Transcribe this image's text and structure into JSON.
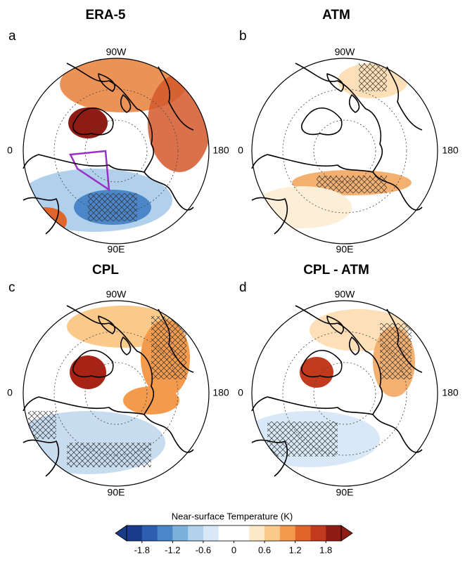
{
  "panels": [
    {
      "letter": "a",
      "title": "ERA-5",
      "labels": {
        "top": "90W",
        "left": "0",
        "right": "180",
        "bottom": "90E"
      }
    },
    {
      "letter": "b",
      "title": "ATM",
      "labels": {
        "top": "90W",
        "left": "0",
        "right": "180",
        "bottom": "90E"
      }
    },
    {
      "letter": "c",
      "title": "CPL",
      "labels": {
        "top": "90W",
        "left": "0",
        "right": "180",
        "bottom": "90E"
      }
    },
    {
      "letter": "d",
      "title": "CPL - ATM",
      "labels": {
        "top": "90W",
        "left": "0",
        "right": "180",
        "bottom": "90E"
      }
    }
  ],
  "colorbar": {
    "title": "Near-surface Temperature (K)",
    "lim": [
      -2.1,
      2.1
    ],
    "ticks": [
      -1.8,
      -1.2,
      -0.6,
      0,
      0.6,
      1.2,
      1.8
    ],
    "colors": [
      "#1a3a8a",
      "#2c5fb0",
      "#4a86c8",
      "#7eb0dc",
      "#b0d0ec",
      "#d8e8f6",
      "#ffffff",
      "#ffffff",
      "#fde9c8",
      "#fbc98a",
      "#f39a4d",
      "#e0652a",
      "#c23a1e",
      "#8f1c14"
    ]
  }
}
